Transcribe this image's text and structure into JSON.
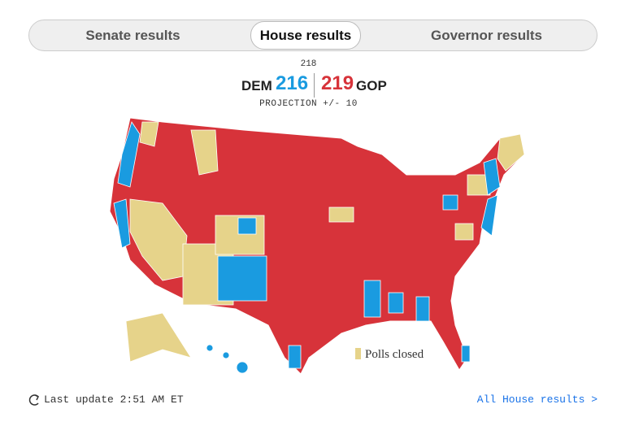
{
  "tabs": [
    "Senate results",
    "House results",
    "Governor results"
  ],
  "active_tab": "House results",
  "scoreboard": {
    "threshold": "218",
    "dem_label": "DEM",
    "dem_seats": "216",
    "gop_seats": "219",
    "gop_label": "GOP",
    "projection": "PROJECTION +/- 10"
  },
  "legend": {
    "label": "Polls closed"
  },
  "footer": {
    "last_update": "Last update 2:51 AM ET",
    "link": "All House results >"
  }
}
